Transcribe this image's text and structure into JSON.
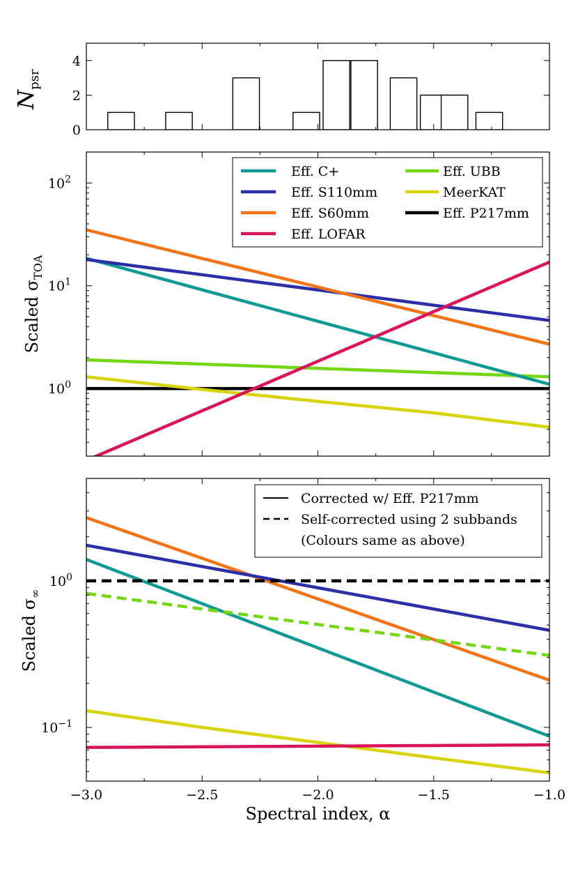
{
  "chart_data": [
    {
      "type": "bar",
      "panel": "histogram",
      "ylabel_main": "N",
      "ylabel_sub": "psr",
      "yticks": [
        "0",
        "2",
        "4"
      ],
      "ylim": [
        0,
        5
      ],
      "xlim": [
        -3.0,
        -1.0
      ],
      "bin_width": 0.115,
      "bins": [
        {
          "center": -2.85,
          "count": 1
        },
        {
          "center": -2.6,
          "count": 1
        },
        {
          "center": -2.31,
          "count": 3
        },
        {
          "center": -2.05,
          "count": 1
        },
        {
          "center": -1.92,
          "count": 4
        },
        {
          "center": -1.8,
          "count": 4
        },
        {
          "center": -1.63,
          "count": 3
        },
        {
          "center": -1.5,
          "count": 2
        },
        {
          "center": -1.41,
          "count": 2
        },
        {
          "center": -1.26,
          "count": 1
        }
      ]
    },
    {
      "type": "line",
      "panel": "toa",
      "ylabel_main": "Scaled σ",
      "ylabel_sub": "TOA",
      "yscale": "log",
      "ylim": [
        0.22,
        200
      ],
      "xlim": [
        -3.0,
        -1.0
      ],
      "yticks": [
        {
          "base": "10",
          "exp": "0",
          "value": 1
        },
        {
          "base": "10",
          "exp": "1",
          "value": 10
        },
        {
          "base": "10",
          "exp": "2",
          "value": 100
        }
      ],
      "legend_position": "upper-right",
      "legend_columns": 2,
      "series": [
        {
          "name": "Eff. C+",
          "color": "#119a94",
          "x": [
            -3.0,
            -1.0
          ],
          "y": [
            18.5,
            1.1
          ]
        },
        {
          "name": "Eff. S110mm",
          "color": "#2b2fa8",
          "x": [
            -3.0,
            -1.0
          ],
          "y": [
            18.0,
            4.6
          ]
        },
        {
          "name": "Eff. S60mm",
          "color": "#f27418",
          "x": [
            -3.0,
            -1.0
          ],
          "y": [
            35.0,
            2.7
          ]
        },
        {
          "name": "Eff. LOFAR",
          "color": "#d8145a",
          "x": [
            -3.0,
            -1.0
          ],
          "y": [
            0.2,
            17.0
          ]
        },
        {
          "name": "Eff. UBB",
          "color": "#74d614",
          "x": [
            -3.0,
            -1.0
          ],
          "y": [
            1.9,
            1.3
          ]
        },
        {
          "name": "MeerKAT",
          "color": "#d8d40c",
          "x": [
            -3.0,
            -2.5,
            -2.0,
            -1.5,
            -1.0
          ],
          "y": [
            1.3,
            0.98,
            0.75,
            0.58,
            0.42
          ]
        },
        {
          "name": "Eff. P217mm",
          "color": "#000000",
          "x": [
            -3.0,
            -1.0
          ],
          "y": [
            1.0,
            1.0
          ]
        }
      ]
    },
    {
      "type": "line",
      "panel": "infinite",
      "ylabel_main": "Scaled σ",
      "ylabel_sub": "∞",
      "yscale": "log",
      "ylim": [
        0.043,
        5.0
      ],
      "xlim": [
        -3.0,
        -1.0
      ],
      "xlabel": "Spectral index, α",
      "xticks": [
        "−3.0",
        "−2.5",
        "−2.0",
        "−1.5",
        "−1.0"
      ],
      "xtick_values": [
        -3.0,
        -2.5,
        -2.0,
        -1.5,
        -1.0
      ],
      "yticks": [
        {
          "base": "10",
          "exp": "-1",
          "value": 0.1
        },
        {
          "base": "10",
          "exp": "0",
          "value": 1
        }
      ],
      "legend_position": "upper-right",
      "legend_entries": [
        {
          "label": "Corrected w/ Eff. P217mm",
          "style": "solid"
        },
        {
          "label": "Self-corrected using 2 subbands",
          "style": "dashed"
        },
        {
          "label": "(Colours same as above)",
          "style": "none"
        }
      ],
      "series": [
        {
          "name": "Eff. S60mm",
          "color": "#f27418",
          "style": "solid",
          "x": [
            -3.0,
            -1.0
          ],
          "y": [
            2.7,
            0.21
          ]
        },
        {
          "name": "Eff. S110mm",
          "color": "#2b2fa8",
          "style": "solid",
          "x": [
            -3.0,
            -1.0
          ],
          "y": [
            1.75,
            0.46
          ]
        },
        {
          "name": "Eff. C+",
          "color": "#119a94",
          "style": "solid",
          "x": [
            -3.0,
            -1.0
          ],
          "y": [
            1.4,
            0.087
          ]
        },
        {
          "name": "Eff. UBB",
          "color": "#74d614",
          "style": "dashed",
          "x": [
            -3.0,
            -1.0
          ],
          "y": [
            0.82,
            0.31
          ]
        },
        {
          "name": "MeerKAT",
          "color": "#d8d40c",
          "style": "solid",
          "x": [
            -3.0,
            -2.5,
            -2.0,
            -1.5,
            -1.0
          ],
          "y": [
            0.13,
            0.1,
            0.079,
            0.062,
            0.049
          ]
        },
        {
          "name": "Eff. LOFAR",
          "color": "#d8145a",
          "style": "solid",
          "x": [
            -3.0,
            -1.0
          ],
          "y": [
            0.073,
            0.076
          ]
        },
        {
          "name": "Eff. P217mm",
          "color": "#000000",
          "style": "dashed",
          "x": [
            -3.0,
            -1.0
          ],
          "y": [
            1.0,
            1.0
          ]
        }
      ]
    }
  ]
}
